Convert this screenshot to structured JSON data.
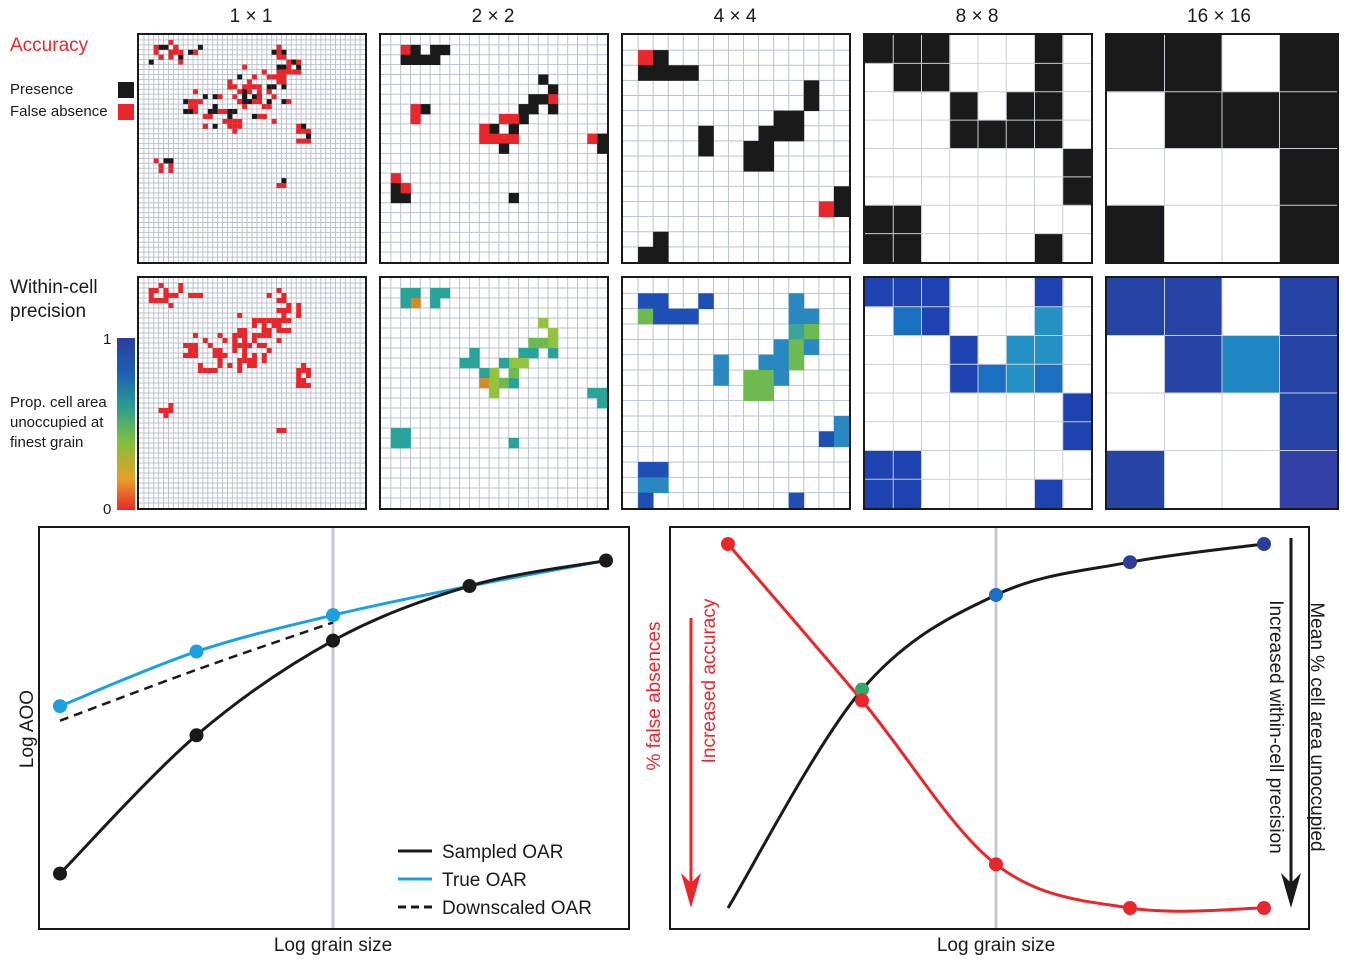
{
  "grid_titles": [
    "1 × 1",
    "2 × 2",
    "4 × 4",
    "8 × 8",
    "16 × 16"
  ],
  "accuracy": {
    "title": "Accuracy",
    "title_color": "#e8262b",
    "legend": [
      {
        "label": "Presence",
        "color": "#1a1a1a"
      },
      {
        "label": "False absence",
        "color": "#e8262b"
      }
    ]
  },
  "precision": {
    "title": "Within-cell precision",
    "colorbar_max": "1",
    "colorbar_min": "0",
    "colorbar_label": "Prop. cell area unoccupied at finest grain",
    "colorbar_colors": [
      "#e8262b",
      "#7fbf3f",
      "#2a9d8f",
      "#1e5fb4",
      "#2b3e9c"
    ]
  },
  "left_chart": {
    "ylabel": "Log AOO",
    "xlabel": "Log grain size",
    "legend": [
      {
        "label": "Sampled OAR",
        "color": "#1a1a1a",
        "style": "solid"
      },
      {
        "label": "True OAR",
        "color": "#1ba1e2",
        "style": "solid"
      },
      {
        "label": "Downscaled OAR",
        "color": "#1a1a1a",
        "style": "dashed"
      }
    ]
  },
  "right_chart": {
    "xlabel": "Log grain size",
    "left_axis_label": "% false absences",
    "left_arrow_label": "Increased accuracy",
    "right_axis_label": "Mean % cell area unoccupied",
    "right_arrow_label": "Increased within-cell precision"
  },
  "chart_data": [
    {
      "type": "line",
      "xlabel": "Log grain size",
      "ylabel": "Log AOO",
      "x": [
        1,
        2,
        3,
        4,
        5
      ],
      "series": [
        {
          "name": "Sampled OAR",
          "color": "#1a1a1a",
          "values": [
            1.0,
            4.8,
            7.4,
            8.9,
            9.6
          ]
        },
        {
          "name": "True OAR",
          "color": "#1ba1e2",
          "values": [
            5.6,
            7.1,
            8.1,
            8.9,
            9.6
          ]
        },
        {
          "name": "Downscaled OAR",
          "color": "#1a1a1a",
          "values": [
            5.2,
            6.6,
            7.9,
            8.9,
            9.6
          ]
        }
      ],
      "ylim": [
        0,
        10
      ]
    },
    {
      "type": "line",
      "xlabel": "Log grain size",
      "x": [
        1,
        2,
        3,
        4,
        5
      ],
      "series": [
        {
          "color": "#e8262b",
          "values": [
            10.0,
            5.7,
            1.2,
            0.0,
            0.0
          ]
        },
        {
          "color": "#1a1a1a",
          "values": [
            0.0,
            6.0,
            8.6,
            9.5,
            10.0
          ]
        }
      ],
      "ylim": [
        0,
        10
      ]
    }
  ]
}
